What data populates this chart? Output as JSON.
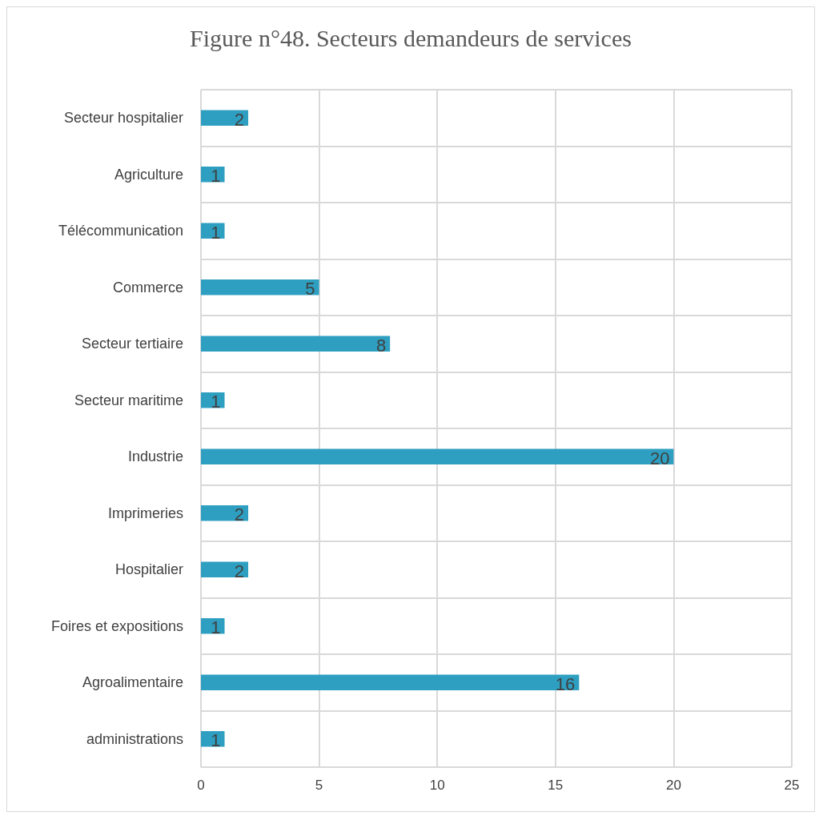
{
  "chart_data": {
    "type": "bar",
    "orientation": "horizontal",
    "title": "Figure n°48. Secteurs demandeurs de services",
    "categories": [
      "Secteur hospitalier",
      "Agriculture",
      "Télécommunication",
      "Commerce",
      "Secteur tertiaire",
      "Secteur maritime",
      "Industrie",
      "Imprimeries",
      "Hospitalier",
      "Foires et expositions",
      "Agroalimentaire",
      "administrations"
    ],
    "values": [
      2,
      1,
      1,
      5,
      8,
      1,
      20,
      2,
      2,
      1,
      16,
      1
    ],
    "color": "#2e9fc1",
    "xlim": [
      0,
      25
    ],
    "xticks": [
      0,
      5,
      10,
      15,
      20,
      25
    ],
    "grid": true,
    "data_labels": true
  }
}
